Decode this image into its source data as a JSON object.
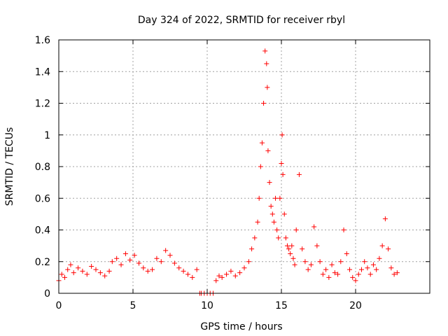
{
  "chart_data": {
    "type": "scatter",
    "title": "Day 324 of 2022, SRMTID for receiver rbyl",
    "xlabel": "GPS time / hours",
    "ylabel": "SRMTID / TECUs",
    "xlim": [
      0,
      25
    ],
    "ylim": [
      0,
      1.6
    ],
    "x_ticks": [
      0,
      5,
      10,
      15,
      20
    ],
    "y_ticks": [
      0,
      0.2,
      0.4,
      0.6,
      0.8,
      1,
      1.2,
      1.4,
      1.6
    ],
    "x_tick_labels": [
      "0",
      "5",
      "10",
      "15",
      "20"
    ],
    "y_tick_labels": [
      "0",
      "0.2",
      "0.4",
      "0.6",
      "0.8",
      "1",
      "1.2",
      "1.4",
      "1.6"
    ],
    "grid": true,
    "marker": "plus",
    "color": "#ff0000",
    "series": [
      {
        "name": "SRMTID",
        "x": [
          0.0,
          0.2,
          0.4,
          0.6,
          0.8,
          1.0,
          1.3,
          1.6,
          1.9,
          2.2,
          2.5,
          2.8,
          3.1,
          3.4,
          3.6,
          3.9,
          4.2,
          4.5,
          4.8,
          5.1,
          5.4,
          5.7,
          6.0,
          6.3,
          6.6,
          6.9,
          7.2,
          7.5,
          7.8,
          8.1,
          8.4,
          8.7,
          9.0,
          9.3,
          9.5,
          9.6,
          9.8,
          10.0,
          10.2,
          10.4,
          10.6,
          10.8,
          11.0,
          11.3,
          11.6,
          11.9,
          12.2,
          12.5,
          12.8,
          13.0,
          13.2,
          13.4,
          13.5,
          13.6,
          13.7,
          13.8,
          13.9,
          14.0,
          14.05,
          14.1,
          14.2,
          14.3,
          14.4,
          14.5,
          14.6,
          14.7,
          14.8,
          14.9,
          15.0,
          15.05,
          15.1,
          15.2,
          15.3,
          15.4,
          15.5,
          15.6,
          15.7,
          15.8,
          15.9,
          16.0,
          16.2,
          16.4,
          16.6,
          16.8,
          17.0,
          17.2,
          17.4,
          17.6,
          17.8,
          18.0,
          18.2,
          18.4,
          18.6,
          18.8,
          19.0,
          19.2,
          19.4,
          19.6,
          19.8,
          20.0,
          20.2,
          20.4,
          20.6,
          20.8,
          21.0,
          21.2,
          21.4,
          21.6,
          21.8,
          22.0,
          22.2,
          22.4,
          22.6,
          22.8
        ],
        "values": [
          0.08,
          0.12,
          0.1,
          0.15,
          0.18,
          0.13,
          0.16,
          0.14,
          0.12,
          0.17,
          0.15,
          0.13,
          0.11,
          0.14,
          0.2,
          0.22,
          0.18,
          0.25,
          0.21,
          0.24,
          0.19,
          0.16,
          0.14,
          0.15,
          0.22,
          0.2,
          0.27,
          0.24,
          0.19,
          0.16,
          0.14,
          0.12,
          0.1,
          0.15,
          0.0,
          0.0,
          0.0,
          0.0,
          0.0,
          0.0,
          0.08,
          0.11,
          0.1,
          0.12,
          0.14,
          0.11,
          0.13,
          0.16,
          0.2,
          0.28,
          0.35,
          0.45,
          0.6,
          0.8,
          0.95,
          1.2,
          1.53,
          1.45,
          1.3,
          0.9,
          0.7,
          0.55,
          0.5,
          0.45,
          0.6,
          0.4,
          0.35,
          0.6,
          0.82,
          1.0,
          0.75,
          0.5,
          0.35,
          0.3,
          0.28,
          0.25,
          0.3,
          0.22,
          0.18,
          0.4,
          0.75,
          0.28,
          0.2,
          0.15,
          0.18,
          0.42,
          0.3,
          0.2,
          0.12,
          0.15,
          0.1,
          0.18,
          0.13,
          0.12,
          0.2,
          0.4,
          0.25,
          0.15,
          0.1,
          0.08,
          0.12,
          0.15,
          0.2,
          0.16,
          0.12,
          0.18,
          0.15,
          0.22,
          0.3,
          0.47,
          0.28,
          0.16,
          0.12,
          0.13
        ]
      }
    ]
  }
}
